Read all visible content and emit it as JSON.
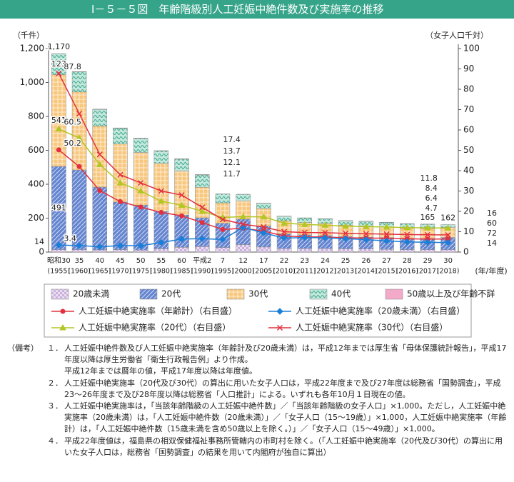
{
  "header": {
    "title": "Ⅰ－５－５図　年齢階級別人工妊娠中絶件数及び実施率の推移"
  },
  "chart_data": {
    "type": "combo",
    "stacked": true,
    "grid": false,
    "legend": "bottom",
    "ylabel": "（千件）",
    "y2label": "（女子人口千対）",
    "xlabel": "(年/年度)",
    "categories": [
      "昭和30",
      "35",
      "40",
      "45",
      "50",
      "55",
      "60",
      "平成2",
      "7",
      "12",
      "17",
      "22",
      "23",
      "24",
      "25",
      "26",
      "27",
      "28",
      "29",
      "30"
    ],
    "category_years": [
      "(1955)",
      "(1960)",
      "(1965)",
      "(1970)",
      "(1975)",
      "(1980)",
      "(1985)",
      "(1990)",
      "(1995)",
      "(2000)",
      "(2005)",
      "(2010)",
      "(2011)",
      "(2012)",
      "(2013)",
      "(2014)",
      "(2015)",
      "(2016)",
      "(2017)",
      "(2018)"
    ],
    "ylim": [
      0,
      1200
    ],
    "yticks": [
      0,
      200,
      400,
      600,
      800,
      {
        "value": 1000,
        "label": "1,000"
      },
      {
        "value": 1200,
        "label": "1,200"
      }
    ],
    "y2lim": [
      0,
      100
    ],
    "y2ticks": [
      0,
      10,
      20,
      30,
      40,
      50,
      60,
      70,
      80,
      90,
      100
    ],
    "totals": [
      1170,
      null,
      null,
      null,
      null,
      null,
      null,
      null,
      null,
      null,
      null,
      null,
      null,
      null,
      null,
      null,
      null,
      null,
      165,
      162
    ],
    "total_labels": [
      "1,170",
      null,
      null,
      null,
      null,
      null,
      null,
      null,
      null,
      null,
      null,
      null,
      null,
      null,
      null,
      null,
      null,
      null,
      "165",
      "162"
    ],
    "series": [
      {
        "name": "20歳未満",
        "type": "bar",
        "color": "#cbb0dc",
        "pattern": "checker",
        "values": [
          14,
          14,
          13,
          14,
          12,
          19,
          28,
          32,
          27,
          44,
          30,
          20,
          20,
          20,
          19,
          18,
          16,
          14,
          14,
          14
        ],
        "value_labels": [
          "14",
          null,
          null,
          null,
          null,
          null,
          null,
          null,
          null,
          null,
          null,
          null,
          null,
          null,
          null,
          null,
          null,
          null,
          null,
          "14"
        ]
      },
      {
        "name": "20代",
        "type": "bar",
        "color": "#6585d0",
        "pattern": "diagonal",
        "values": [
          491,
          470,
          370,
          281,
          265,
          220,
          190,
          170,
          143,
          150,
          124,
          87,
          81,
          77,
          72,
          70,
          69,
          67,
          66,
          72
        ],
        "value_labels": [
          "491",
          null,
          null,
          null,
          null,
          null,
          null,
          null,
          null,
          null,
          null,
          null,
          null,
          null,
          null,
          null,
          null,
          null,
          null,
          "72"
        ]
      },
      {
        "name": "30代",
        "type": "bar",
        "color": "#f8c77c",
        "pattern": "grid",
        "values": [
          541,
          460,
          360,
          342,
          310,
          285,
          260,
          180,
          120,
          108,
          103,
          77,
          73,
          72,
          68,
          66,
          63,
          60,
          59,
          60
        ],
        "value_labels": [
          "541",
          null,
          null,
          null,
          null,
          null,
          null,
          null,
          null,
          null,
          null,
          null,
          null,
          null,
          null,
          null,
          null,
          null,
          null,
          "60"
        ]
      },
      {
        "name": "40代",
        "type": "bar",
        "color": "#c2e8dd",
        "pattern": "wave",
        "values": [
          123,
          118,
          98,
          93,
          83,
          72,
          70,
          73,
          52,
          38,
          31,
          27,
          27,
          27,
          26,
          27,
          27,
          26,
          25,
          16
        ],
        "value_labels": [
          "123",
          null,
          null,
          null,
          null,
          null,
          null,
          null,
          null,
          null,
          null,
          null,
          null,
          null,
          null,
          null,
          null,
          null,
          null,
          "16"
        ]
      },
      {
        "name": "50歳以上及び年齢不詳",
        "type": "bar",
        "color": "#f3a9c8",
        "pattern": "none",
        "values": [
          1,
          2,
          2,
          2,
          2,
          2,
          2,
          2,
          1,
          1,
          1,
          1,
          1,
          1,
          1,
          1,
          1,
          1,
          1,
          0
        ]
      },
      {
        "name": "人工妊娠中絶実施率（年齢計）（右目盛）",
        "type": "line",
        "axis": "y2",
        "color": "#e3303f",
        "marker": "circle",
        "values": [
          50.2,
          42,
          30.2,
          24.8,
          22.1,
          19.5,
          17.8,
          14.5,
          11.1,
          11.7,
          10.3,
          7.9,
          7.5,
          7.4,
          7,
          6.9,
          6.8,
          6.5,
          6.4,
          6.4
        ],
        "value_labels": [
          "50.2",
          null,
          null,
          null,
          null,
          null,
          null,
          null,
          null,
          "11.7",
          null,
          null,
          null,
          null,
          null,
          null,
          null,
          null,
          null,
          "6.4"
        ]
      },
      {
        "name": "人工妊娠中絶実施率（20歳未満）（右目盛）",
        "type": "line",
        "axis": "y2",
        "color": "#1b7fd8",
        "marker": "diamond",
        "values": [
          3.4,
          3.2,
          2.6,
          3.2,
          3.1,
          4.7,
          6.4,
          6.6,
          6.2,
          12.1,
          9.4,
          6.9,
          7.1,
          7,
          6.6,
          6.1,
          5.5,
          5,
          4.8,
          4.7
        ],
        "value_labels": [
          "3.4",
          null,
          null,
          null,
          null,
          null,
          null,
          null,
          null,
          "12.1",
          null,
          null,
          null,
          null,
          null,
          null,
          null,
          null,
          null,
          "4.7"
        ]
      },
      {
        "name": "人工妊娠中絶実施率（20代）（右目盛）",
        "type": "line",
        "axis": "y2",
        "color": "#b3c624",
        "marker": "triangle",
        "values": [
          60.5,
          56,
          43,
          34,
          30,
          25,
          23,
          20,
          17,
          17.4,
          17.3,
          14.2,
          13.6,
          13.2,
          12.7,
          12.5,
          12.3,
          12,
          11.9,
          11.8
        ],
        "value_labels": [
          "60.5",
          null,
          null,
          null,
          null,
          null,
          null,
          null,
          null,
          "17.4",
          null,
          null,
          null,
          null,
          null,
          null,
          null,
          null,
          null,
          "11.8"
        ]
      },
      {
        "name": "人工妊娠中絶実施率（30代）（右目盛）",
        "type": "line",
        "axis": "y2",
        "color": "#e3303f",
        "marker": "x",
        "values": [
          87.8,
          68,
          48,
          38,
          34,
          30,
          28,
          22,
          16,
          13.7,
          12.3,
          10,
          9.6,
          9.5,
          9.2,
          9,
          8.8,
          8.6,
          8.5,
          8.4
        ],
        "value_labels": [
          "87.8",
          null,
          null,
          null,
          null,
          null,
          null,
          null,
          null,
          "13.7",
          null,
          null,
          null,
          null,
          null,
          null,
          null,
          null,
          null,
          "8.4"
        ]
      }
    ]
  },
  "notes": {
    "label": "（備考）",
    "items": [
      {
        "num": "１．",
        "paragraphs": [
          "人工妊娠中絶件数及び人工妊娠中絶実施率（年齢計及び20歳未満）は，平成12年までは厚生省「母体保護統計報告」，平成17年度以降は厚生労働省「衛生行政報告例」より作成。",
          "平成12年までは暦年の値，平成17年度以降は年度値。"
        ]
      },
      {
        "num": "２．",
        "paragraphs": [
          "人工妊娠中絶実施率（20代及び30代）の算出に用いた女子人口は，平成22年度まで及び27年度は総務省「国勢調査」，平成23～26年度まで及び28年度以降は総務省「人口推計」による。いずれも各年10月１日現在の値。"
        ]
      },
      {
        "num": "３．",
        "paragraphs": [
          "人工妊娠中絶実施率は，「当該年齢階級の人工妊娠中絶件数」／「当該年齢階級の女子人口」×1,000。ただし，人工妊娠中絶実施率（20歳未満）は，「人工妊娠中絶件数（20歳未満）」／「女子人口（15～19歳）」×1,000，人工妊娠中絶実施率（年齢計）は，「人工妊娠中絶件数（15歳未満を含め50歳以上を除く。）」／「女子人口（15～49歳）」×1,000。"
        ]
      },
      {
        "num": "４．",
        "paragraphs": [
          "平成22年度値は，福島県の相双保健福祉事務所管轄内の市町村を除く。（「人工妊娠中絶実施率（20代及び30代）の算出に用いた女子人口は，総務省「国勢調査」の結果を用いて内閣府が独自に算出）"
        ]
      }
    ]
  }
}
